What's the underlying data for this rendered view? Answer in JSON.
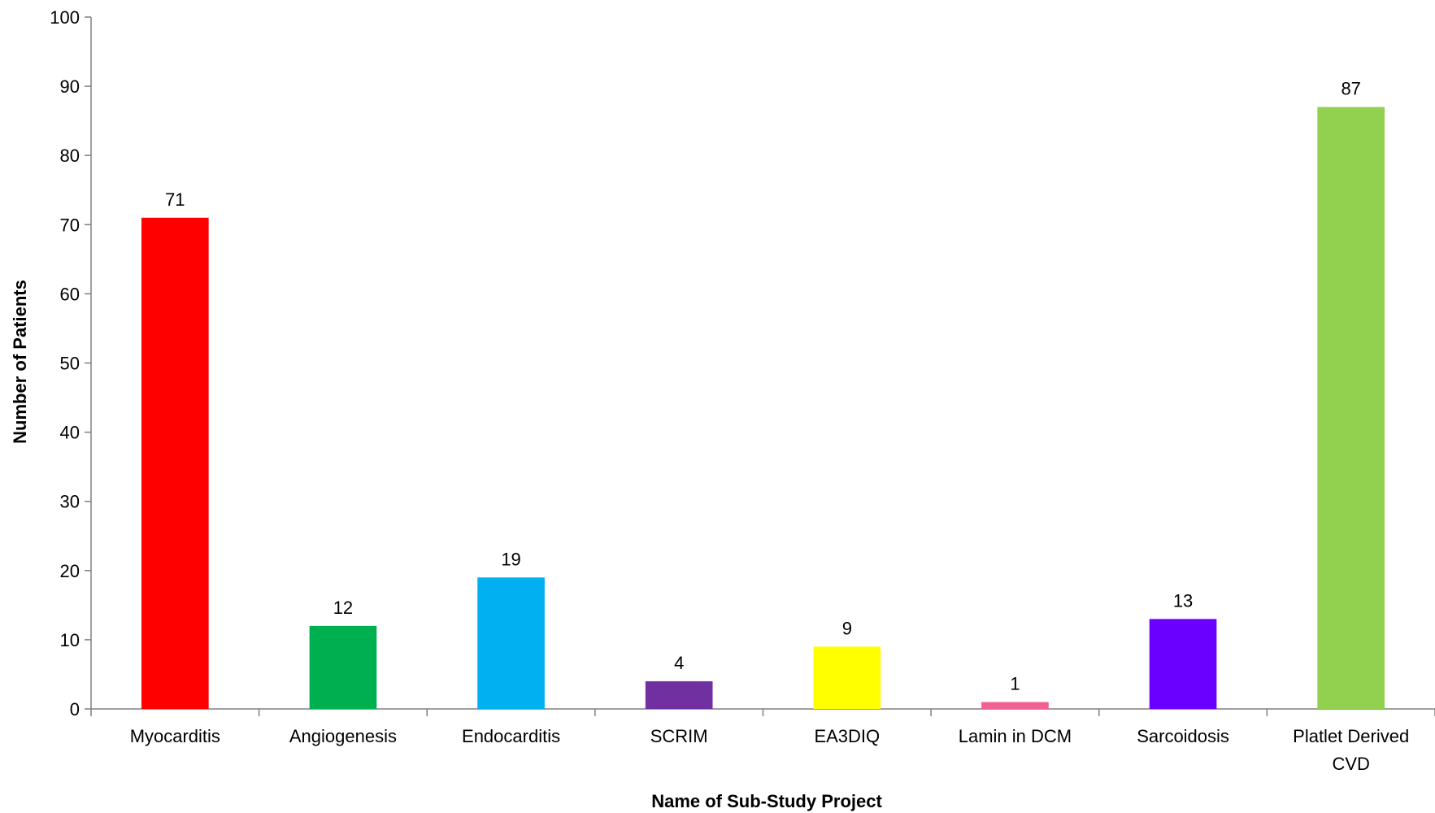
{
  "chart_data": {
    "type": "bar",
    "categories": [
      "Myocarditis",
      "Angiogenesis",
      "Endocarditis",
      "SCRIM",
      "EA3DIQ",
      "Lamin in DCM",
      "Sarcoidosis",
      "Platlet Derived CVD"
    ],
    "category_lines": [
      [
        "Myocarditis"
      ],
      [
        "Angiogenesis"
      ],
      [
        "Endocarditis"
      ],
      [
        "SCRIM"
      ],
      [
        "EA3DIQ"
      ],
      [
        "Lamin in DCM"
      ],
      [
        "Sarcoidosis"
      ],
      [
        "Platlet Derived",
        "CVD"
      ]
    ],
    "values": [
      71,
      12,
      19,
      4,
      9,
      1,
      13,
      87
    ],
    "colors": [
      "#ff0000",
      "#00b050",
      "#00b0f0",
      "#7030a0",
      "#ffff00",
      "#f06292",
      "#6a00ff",
      "#92d050"
    ],
    "title": "",
    "xlabel": "Name of Sub-Study Project",
    "ylabel": "Number of Patients",
    "ylim": [
      0,
      100
    ],
    "yticks": [
      0,
      10,
      20,
      30,
      40,
      50,
      60,
      70,
      80,
      90,
      100
    ],
    "grid": false,
    "legend": "none"
  }
}
